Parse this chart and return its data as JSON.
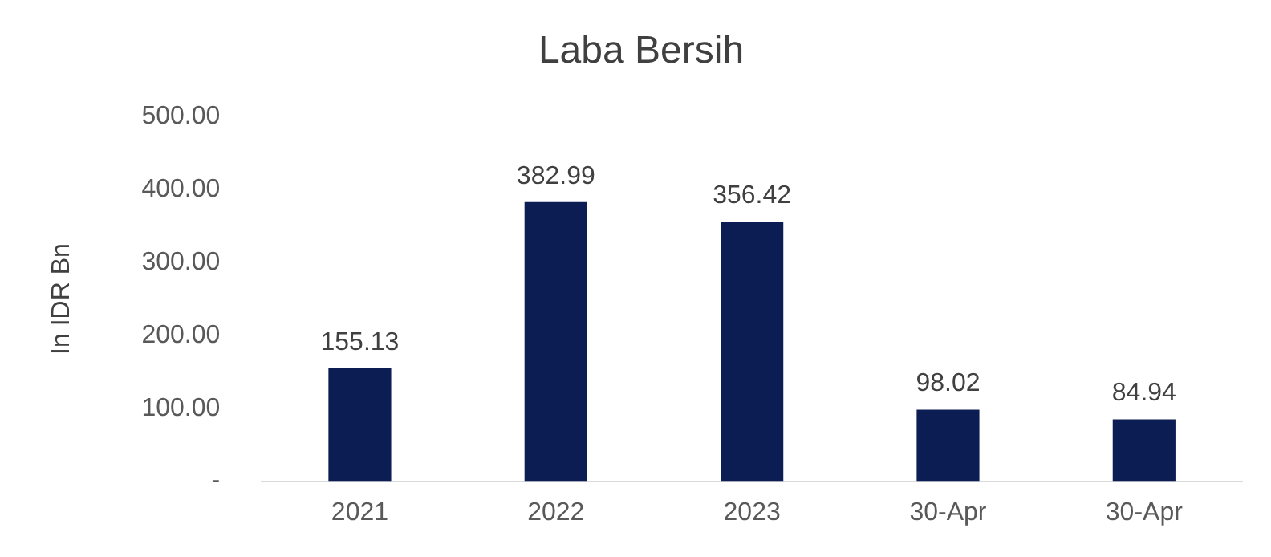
{
  "chart_data": {
    "type": "bar",
    "title": "Laba Bersih",
    "ylabel": "In IDR Bn",
    "categories": [
      "2021",
      "2022",
      "2023",
      "30-Apr",
      "30-Apr"
    ],
    "values": [
      155.13,
      382.99,
      356.42,
      98.02,
      84.94
    ],
    "color": "#0c1d54",
    "ylim": [
      0,
      500
    ],
    "yticks": [
      {
        "value": 0,
        "label": "-"
      },
      {
        "value": 100,
        "label": "100.00"
      },
      {
        "value": 200,
        "label": "200.00"
      },
      {
        "value": 300,
        "label": "300.00"
      },
      {
        "value": 400,
        "label": "400.00"
      },
      {
        "value": 500,
        "label": "500.00"
      }
    ],
    "grid": false,
    "legend": false,
    "data_labels": true
  }
}
